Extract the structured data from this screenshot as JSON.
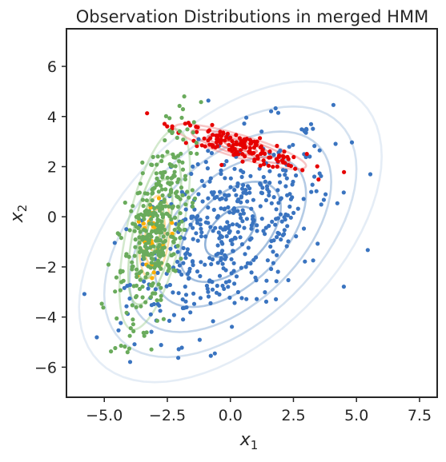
{
  "chart_data": {
    "type": "scatter",
    "title": "Observation Distributions in merged HMM",
    "xlabel": {
      "base": "x",
      "sub": "1"
    },
    "ylabel": {
      "base": "x",
      "sub": "2"
    },
    "xlim": [
      -6.5,
      8.2
    ],
    "ylim": [
      -7.2,
      7.5
    ],
    "xticks": [
      -5.0,
      -2.5,
      0.0,
      2.5,
      5.0,
      7.5
    ],
    "xtick_labels": [
      "−5.0",
      "−2.5",
      "0.0",
      "2.5",
      "5.0",
      "7.5"
    ],
    "yticks": [
      -6,
      -4,
      -2,
      0,
      2,
      4,
      6
    ],
    "ytick_labels": [
      "−6",
      "−4",
      "−2",
      "0",
      "2",
      "4",
      "6"
    ],
    "grid": false,
    "series": [
      {
        "name": "blue",
        "color": "#3a74c0",
        "mean": [
          0.0,
          -0.6
        ],
        "sd": [
          2.0,
          2.0
        ],
        "corr": 0.5,
        "n": 460,
        "contour_color": "#7fa6d2",
        "contour_levels": [
          0.5,
          1.0,
          1.5,
          2.0,
          2.5,
          3.0
        ]
      },
      {
        "name": "red",
        "color": "#e60000",
        "mean": [
          0.4,
          2.8
        ],
        "sd": [
          1.3,
          0.45
        ],
        "corr": -0.85,
        "n": 150,
        "contour_color": "#f08080",
        "contour_levels": [
          0.5,
          1.0,
          1.5,
          2.0
        ]
      },
      {
        "name": "orange",
        "color": "#ffae00",
        "mean": [
          -3.0,
          -0.8
        ],
        "sd": [
          0.4,
          1.1
        ],
        "corr": 0.3,
        "n": 30,
        "contour_color": "#ffc866",
        "contour_levels": [
          0.5,
          1.0,
          1.5
        ]
      },
      {
        "name": "green",
        "color": "#6aab5c",
        "mean": [
          -3.0,
          -0.5
        ],
        "sd": [
          0.7,
          2.0
        ],
        "corr": 0.6,
        "n": 360,
        "contour_color": "#9fcf93",
        "contour_levels": [
          0.5,
          1.0,
          1.5,
          2.0
        ]
      }
    ]
  }
}
